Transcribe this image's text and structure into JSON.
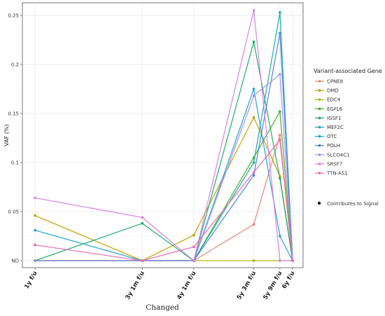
{
  "chart_data": {
    "type": "line",
    "xlabel": "Changed",
    "ylabel": "VAF (%)",
    "x_categories": [
      "1y f/u",
      "3y 1m f/u",
      "4y 1m f/u",
      "5y 3m f/u",
      "5y 9m f/u",
      "6y f/u"
    ],
    "x_days": [
      365,
      1125,
      1490,
      1915,
      2100,
      2190
    ],
    "ylim": [
      0,
      0.26
    ],
    "y_ticks": [
      0,
      0.05,
      0.1,
      0.15,
      0.2,
      0.25
    ],
    "y_tick_labels": [
      "ND",
      "0.05",
      "0.1",
      "0.15",
      "0.2",
      "0.25"
    ],
    "grid": true,
    "legend": {
      "title": "Variant-associated Gene",
      "placement": "right",
      "signal_label": "Contributes to Signal"
    },
    "series": [
      {
        "name": "CPNE8",
        "color": "#e8836f",
        "values": [
          0,
          0,
          0,
          0.037,
          0.128,
          0
        ]
      },
      {
        "name": "DMD",
        "color": "#c2a000",
        "values": [
          0.046,
          0,
          0.026,
          0.146,
          0.086,
          0
        ]
      },
      {
        "name": "EDC4",
        "color": "#a8b400",
        "values": [
          0,
          0,
          0,
          0,
          0,
          0
        ]
      },
      {
        "name": "EGFL6",
        "color": "#3fae2f",
        "values": [
          0,
          0,
          0,
          0.105,
          0.152,
          0
        ]
      },
      {
        "name": "IGSF1",
        "color": "#18a868",
        "values": [
          0,
          0.038,
          0,
          0.223,
          0.084,
          0
        ]
      },
      {
        "name": "MEF2C",
        "color": "#15a8a0",
        "values": [
          0,
          0,
          0,
          0.1,
          0.253,
          0
        ]
      },
      {
        "name": "OTC",
        "color": "#1ea0d0",
        "values": [
          0.031,
          0,
          0,
          0.175,
          0.025,
          0
        ]
      },
      {
        "name": "POLH",
        "color": "#4a7fe0",
        "values": [
          0,
          0,
          0,
          0.087,
          0.232,
          0
        ]
      },
      {
        "name": "SLCO4C1",
        "color": "#a58cf0",
        "values": [
          0,
          0,
          0,
          0.168,
          0.19,
          0
        ]
      },
      {
        "name": "SRSF7",
        "color": "#d77ee6",
        "values": [
          0.064,
          0.044,
          0,
          0.255,
          0,
          0
        ]
      },
      {
        "name": "TTN-AS1",
        "color": "#e868b0",
        "values": [
          0.016,
          0,
          0.014,
          0.09,
          0.123,
          0
        ]
      }
    ]
  }
}
